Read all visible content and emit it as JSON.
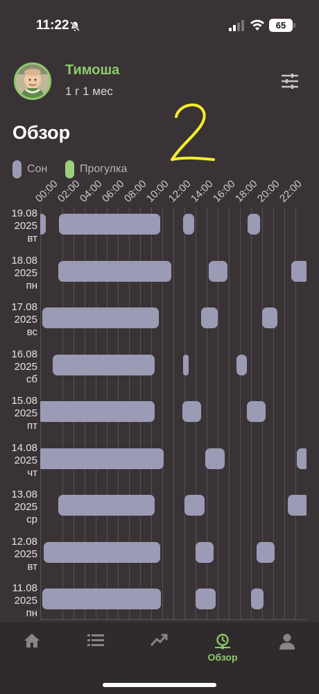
{
  "status_bar": {
    "time": "11:22",
    "battery": "65"
  },
  "profile": {
    "name": "Тимоша",
    "age": "1 г 1 мес"
  },
  "page": {
    "title": "Обзор"
  },
  "annotation": {
    "text": "2"
  },
  "legend": [
    {
      "label": "Сон",
      "color": "#9c9bb5"
    },
    {
      "label": "Прогулка",
      "color": "#9dcf7e"
    }
  ],
  "timeline": {
    "hours_ticks": [
      "00:00",
      "02:00",
      "04:00",
      "06:00",
      "08:00",
      "10:00",
      "12:00",
      "14:00",
      "16:00",
      "18:00",
      "20:00",
      "22:00"
    ],
    "days": [
      {
        "date": "19.08",
        "year": "2025",
        "weekday": "вт",
        "sleeps": [
          [
            0,
            0.2
          ],
          [
            1.7,
            10.8
          ],
          [
            12.9,
            13.9
          ],
          [
            18.7,
            19.8
          ]
        ]
      },
      {
        "date": "18.08",
        "year": "2025",
        "weekday": "пн",
        "sleeps": [
          [
            1.6,
            11.8
          ],
          [
            15.2,
            16.9
          ],
          [
            22.6,
            24
          ]
        ]
      },
      {
        "date": "17.08",
        "year": "2025",
        "weekday": "вс",
        "sleeps": [
          [
            0.2,
            10.7
          ],
          [
            14.5,
            16.0
          ],
          [
            20.0,
            21.4
          ]
        ]
      },
      {
        "date": "16.08",
        "year": "2025",
        "weekday": "сб",
        "sleeps": [
          [
            1.1,
            10.3
          ],
          [
            12.9,
            13.4
          ],
          [
            17.7,
            18.6
          ]
        ]
      },
      {
        "date": "15.08",
        "year": "2025",
        "weekday": "пт",
        "sleeps": [
          [
            0,
            10.3
          ],
          [
            12.8,
            14.5
          ],
          [
            18.6,
            20.3
          ]
        ]
      },
      {
        "date": "14.08",
        "year": "2025",
        "weekday": "чт",
        "sleeps": [
          [
            0,
            11.1
          ],
          [
            14.9,
            16.6
          ],
          [
            23.1,
            24
          ]
        ]
      },
      {
        "date": "13.08",
        "year": "2025",
        "weekday": "ср",
        "sleeps": [
          [
            1.6,
            10.3
          ],
          [
            13.0,
            14.8
          ],
          [
            22.3,
            24
          ]
        ]
      },
      {
        "date": "12.08",
        "year": "2025",
        "weekday": "вт",
        "sleeps": [
          [
            0.3,
            10.8
          ],
          [
            14.0,
            15.6
          ],
          [
            19.5,
            21.1
          ]
        ]
      },
      {
        "date": "11.08",
        "year": "2025",
        "weekday": "пн",
        "sleeps": [
          [
            0.2,
            10.9
          ],
          [
            14.0,
            15.8
          ],
          [
            19.0,
            20.1
          ]
        ]
      }
    ]
  },
  "tabs": [
    {
      "name": "home",
      "label": ""
    },
    {
      "name": "list",
      "label": ""
    },
    {
      "name": "trends",
      "label": ""
    },
    {
      "name": "overview",
      "label": "Обзор",
      "active": true
    },
    {
      "name": "profile",
      "label": ""
    }
  ]
}
